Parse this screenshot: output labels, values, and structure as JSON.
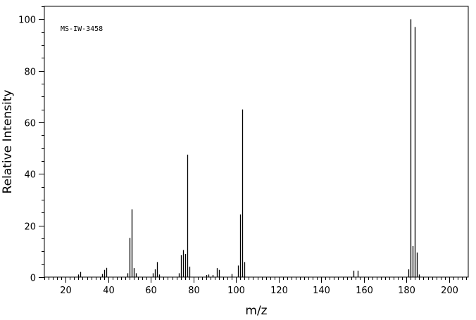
{
  "chart_data": {
    "type": "bar",
    "title": "",
    "annotation": "MS-IW-3458",
    "xlabel": "m/z",
    "ylabel": "Relative Intensity",
    "xlim": [
      10,
      209
    ],
    "ylim": [
      0,
      105
    ],
    "xticks": [
      20,
      40,
      60,
      80,
      100,
      120,
      140,
      160,
      180,
      200
    ],
    "yticks": [
      0,
      20,
      40,
      60,
      80,
      100
    ],
    "xtick_labels": [
      "20",
      "40",
      "60",
      "80",
      "100",
      "120",
      "140",
      "160",
      "180",
      "200"
    ],
    "ytick_labels": [
      "0",
      "20",
      "40",
      "60",
      "80",
      "100"
    ],
    "x_minor_step": 2,
    "y_minor_step": 5,
    "grid": false,
    "peaks": [
      {
        "mz": 26,
        "intensity": 1.0
      },
      {
        "mz": 27,
        "intensity": 2.0
      },
      {
        "mz": 37,
        "intensity": 1.2
      },
      {
        "mz": 38,
        "intensity": 2.8
      },
      {
        "mz": 39,
        "intensity": 3.6
      },
      {
        "mz": 49,
        "intensity": 1.5
      },
      {
        "mz": 50,
        "intensity": 15.2
      },
      {
        "mz": 51,
        "intensity": 26.3
      },
      {
        "mz": 52,
        "intensity": 3.5
      },
      {
        "mz": 53,
        "intensity": 1.5
      },
      {
        "mz": 61,
        "intensity": 1.5
      },
      {
        "mz": 62,
        "intensity": 3.0
      },
      {
        "mz": 63,
        "intensity": 5.8
      },
      {
        "mz": 64,
        "intensity": 1.0
      },
      {
        "mz": 73,
        "intensity": 1.5
      },
      {
        "mz": 74,
        "intensity": 8.5
      },
      {
        "mz": 75,
        "intensity": 10.5
      },
      {
        "mz": 76,
        "intensity": 9.0
      },
      {
        "mz": 77,
        "intensity": 47.5
      },
      {
        "mz": 78,
        "intensity": 4.0
      },
      {
        "mz": 86,
        "intensity": 0.8
      },
      {
        "mz": 87,
        "intensity": 1.0
      },
      {
        "mz": 89,
        "intensity": 0.8
      },
      {
        "mz": 91,
        "intensity": 3.5
      },
      {
        "mz": 92,
        "intensity": 2.8
      },
      {
        "mz": 98,
        "intensity": 1.2
      },
      {
        "mz": 101,
        "intensity": 4.5
      },
      {
        "mz": 102,
        "intensity": 24.3
      },
      {
        "mz": 103,
        "intensity": 65.0
      },
      {
        "mz": 104,
        "intensity": 5.8
      },
      {
        "mz": 155,
        "intensity": 2.5
      },
      {
        "mz": 157,
        "intensity": 2.5
      },
      {
        "mz": 181,
        "intensity": 3.0
      },
      {
        "mz": 182,
        "intensity": 100.0
      },
      {
        "mz": 183,
        "intensity": 12.0
      },
      {
        "mz": 184,
        "intensity": 97.0
      },
      {
        "mz": 185,
        "intensity": 9.5
      },
      {
        "mz": 186,
        "intensity": 1.0
      }
    ]
  }
}
